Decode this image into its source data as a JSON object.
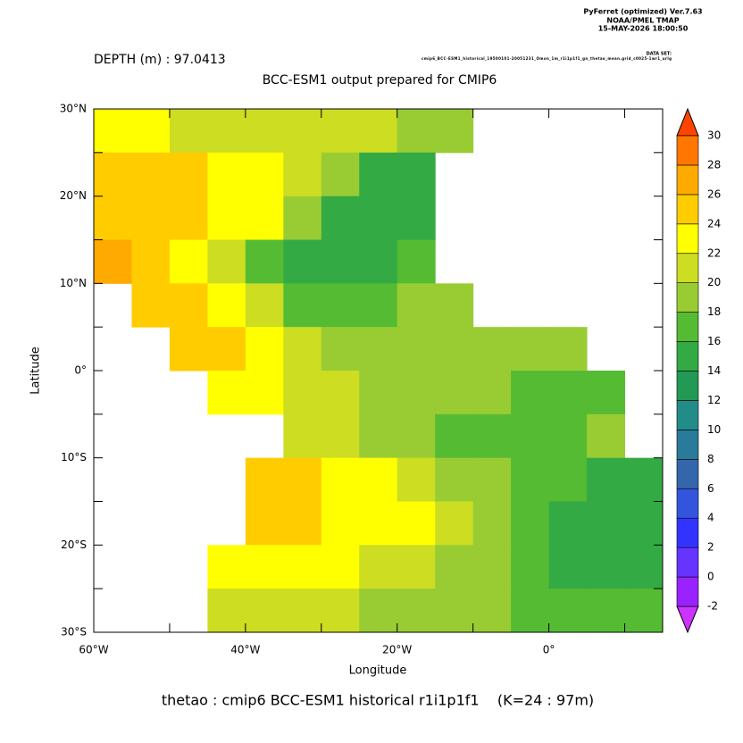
{
  "chart_data": {
    "type": "heatmap",
    "header": [
      "PyFerret (optimized) Ver.7.63",
      "NOAA/PMEL TMAP",
      "15-MAY-2026 18:00:50"
    ],
    "dataset_label": "DATA SET:",
    "dataset": "cmip6_BCC-ESM1_historical_19500101-20051231_Omon_1m_r1i1p1f1_gn_thetao_mean.grid_c0025-1wr1_urlg",
    "subtitle": "DEPTH (m) : 97.0413",
    "title": "BCC-ESM1 output prepared for CMIP6",
    "xlabel": "Longitude",
    "ylabel": "Latitude",
    "caption": "thetao : cmip6 BCC-ESM1 historical r1i1p1f1    (K=24 : 97m)",
    "xlim": [
      -60,
      15
    ],
    "ylim": [
      -30,
      30
    ],
    "xticks": [
      {
        "value": -60,
        "label": "60°W"
      },
      {
        "value": -40,
        "label": "40°W"
      },
      {
        "value": -20,
        "label": "20°W"
      },
      {
        "value": 0,
        "label": "0°"
      }
    ],
    "xminor": [
      -50,
      -30,
      -10,
      10
    ],
    "yticks": [
      {
        "value": 30,
        "label": "30°N"
      },
      {
        "value": 20,
        "label": "20°N"
      },
      {
        "value": 10,
        "label": "10°N"
      },
      {
        "value": 0,
        "label": "0°"
      },
      {
        "value": -10,
        "label": "10°S"
      },
      {
        "value": -20,
        "label": "20°S"
      },
      {
        "value": -30,
        "label": "30°S"
      }
    ],
    "yminor": [
      25,
      15,
      5,
      -5,
      -15,
      -25
    ],
    "x": [
      -57.5,
      -52.5,
      -47.5,
      -42.5,
      -37.5,
      -32.5,
      -27.5,
      -22.5,
      -17.5,
      -12.5,
      -7.5,
      -2.5,
      2.5,
      7.5,
      12.5
    ],
    "y": [
      27.5,
      22.5,
      17.5,
      12.5,
      7.5,
      2.5,
      -2.5,
      -7.5,
      -12.5,
      -17.5,
      -22.5,
      -27.5
    ],
    "values": [
      [
        22,
        22,
        21,
        21,
        21,
        21,
        20,
        20,
        19,
        18,
        null,
        null,
        null,
        null,
        null
      ],
      [
        25,
        25,
        24,
        23,
        22,
        21,
        19,
        15,
        15,
        null,
        null,
        null,
        null,
        null,
        null
      ],
      [
        25,
        25,
        24,
        23,
        22,
        19,
        15,
        14,
        15,
        null,
        null,
        null,
        null,
        null,
        null
      ],
      [
        26,
        25,
        23,
        21,
        17,
        15,
        15,
        15,
        16,
        null,
        null,
        null,
        null,
        null,
        null
      ],
      [
        null,
        25,
        24,
        22,
        20,
        17,
        16,
        16,
        18,
        18,
        null,
        null,
        null,
        null,
        null
      ],
      [
        null,
        null,
        25,
        24,
        22,
        20,
        19,
        18,
        18,
        18,
        19,
        18,
        18,
        null,
        null
      ],
      [
        null,
        null,
        null,
        23,
        22,
        21,
        20,
        19,
        18,
        18,
        18,
        17,
        17,
        17,
        null
      ],
      [
        null,
        null,
        null,
        null,
        null,
        21,
        20,
        19,
        18,
        17,
        16,
        16,
        17,
        18,
        null
      ],
      [
        null,
        null,
        null,
        null,
        24,
        24,
        23,
        22,
        21,
        19,
        18,
        17,
        16,
        14,
        15
      ],
      [
        null,
        null,
        null,
        null,
        24,
        24,
        23,
        23,
        22,
        21,
        19,
        17,
        15,
        14,
        15
      ],
      [
        null,
        null,
        null,
        22,
        23,
        23,
        22,
        21,
        20,
        19,
        18,
        16,
        15,
        15,
        15
      ],
      [
        null,
        null,
        null,
        20,
        20,
        20,
        20,
        19,
        19,
        18,
        18,
        17,
        16,
        16,
        16
      ]
    ],
    "colorbar": {
      "ticks": [
        -2,
        0,
        2,
        4,
        6,
        8,
        10,
        12,
        14,
        16,
        18,
        20,
        22,
        24,
        26,
        28,
        30
      ],
      "colors": [
        "#cc33ff",
        "#9922ff",
        "#6633ff",
        "#3333ff",
        "#3355dd",
        "#3366aa",
        "#2a7a99",
        "#228c88",
        "#229955",
        "#33aa44",
        "#55bb33",
        "#99cc33",
        "#ccdd22",
        "#ffff00",
        "#ffcc00",
        "#ffaa00",
        "#ff7700",
        "#ff4400",
        "#ff0000"
      ]
    }
  }
}
